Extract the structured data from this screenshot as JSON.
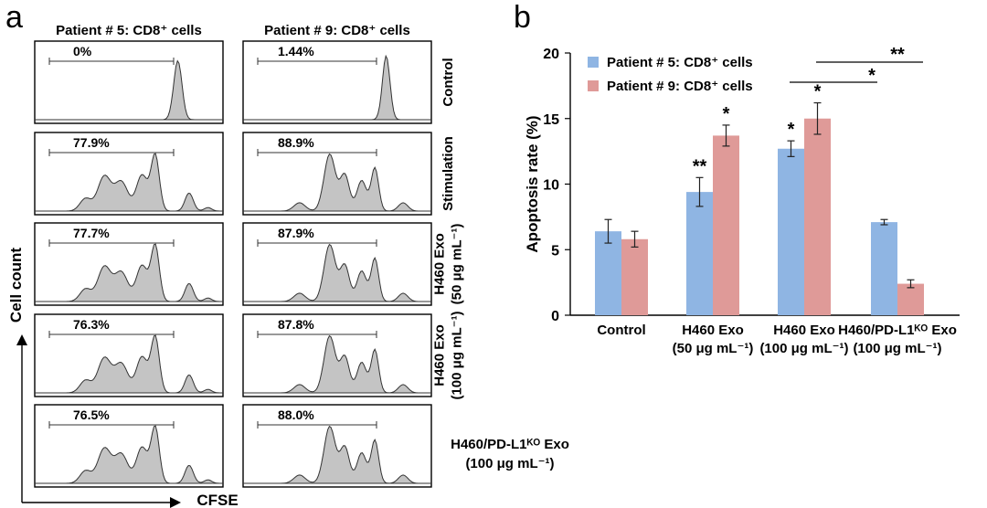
{
  "chart_data": [
    {
      "type": "histogram",
      "panel": "a",
      "xlabel": "CFSE",
      "ylabel": "Cell count",
      "columns": [
        {
          "title": "Patient # 5: CD8⁺ cells"
        },
        {
          "title": "Patient # 9: CD8⁺ cells"
        }
      ],
      "rows": [
        {
          "label_lines": [
            "Control"
          ],
          "values": [
            "0%",
            "1.44%"
          ]
        },
        {
          "label_lines": [
            "Stimulation"
          ],
          "values": [
            "77.9%",
            "88.9%"
          ]
        },
        {
          "label_lines": [
            "H460 Exo",
            "(50 μg mL⁻¹)"
          ],
          "values": [
            "77.7%",
            "87.9%"
          ]
        },
        {
          "label_lines": [
            "H460 Exo",
            "(100 μg mL⁻¹)"
          ],
          "values": [
            "76.3%",
            "87.8%"
          ]
        },
        {
          "label_lines": [
            "H460/PD-L1ᴷᴼ Exo",
            "(100 μg mL⁻¹)"
          ],
          "values": [
            "76.5%",
            "88.0%"
          ]
        }
      ]
    },
    {
      "type": "bar",
      "panel": "b",
      "ylabel": "Apoptosis rate (%)",
      "ylim": [
        0,
        20
      ],
      "yticks": [
        0,
        5,
        10,
        15,
        20
      ],
      "categories": [
        [
          "Control"
        ],
        [
          "H460 Exo",
          "(50 μg mL⁻¹)"
        ],
        [
          "H460 Exo",
          "(100 μg mL⁻¹)"
        ],
        [
          "H460/PD-L1ᴷᴼ Exo",
          "(100 μg mL⁻¹)"
        ]
      ],
      "series": [
        {
          "name": "Patient # 5: CD8⁺ cells",
          "color": "#8fb5e3",
          "values": [
            6.4,
            9.4,
            12.7,
            7.1
          ],
          "errors": [
            0.9,
            1.1,
            0.6,
            0.2
          ],
          "stars": [
            "",
            "**",
            "*",
            ""
          ]
        },
        {
          "name": "Patient # 9: CD8⁺ cells",
          "color": "#df9a98",
          "values": [
            5.8,
            13.7,
            15.0,
            2.4
          ],
          "errors": [
            0.6,
            0.8,
            1.2,
            0.3
          ],
          "stars": [
            "",
            "*",
            "*",
            ""
          ]
        }
      ],
      "comparisons": [
        {
          "label": "**"
        },
        {
          "label": "*"
        }
      ]
    }
  ],
  "panel_labels": {
    "a": "a",
    "b": "b"
  }
}
